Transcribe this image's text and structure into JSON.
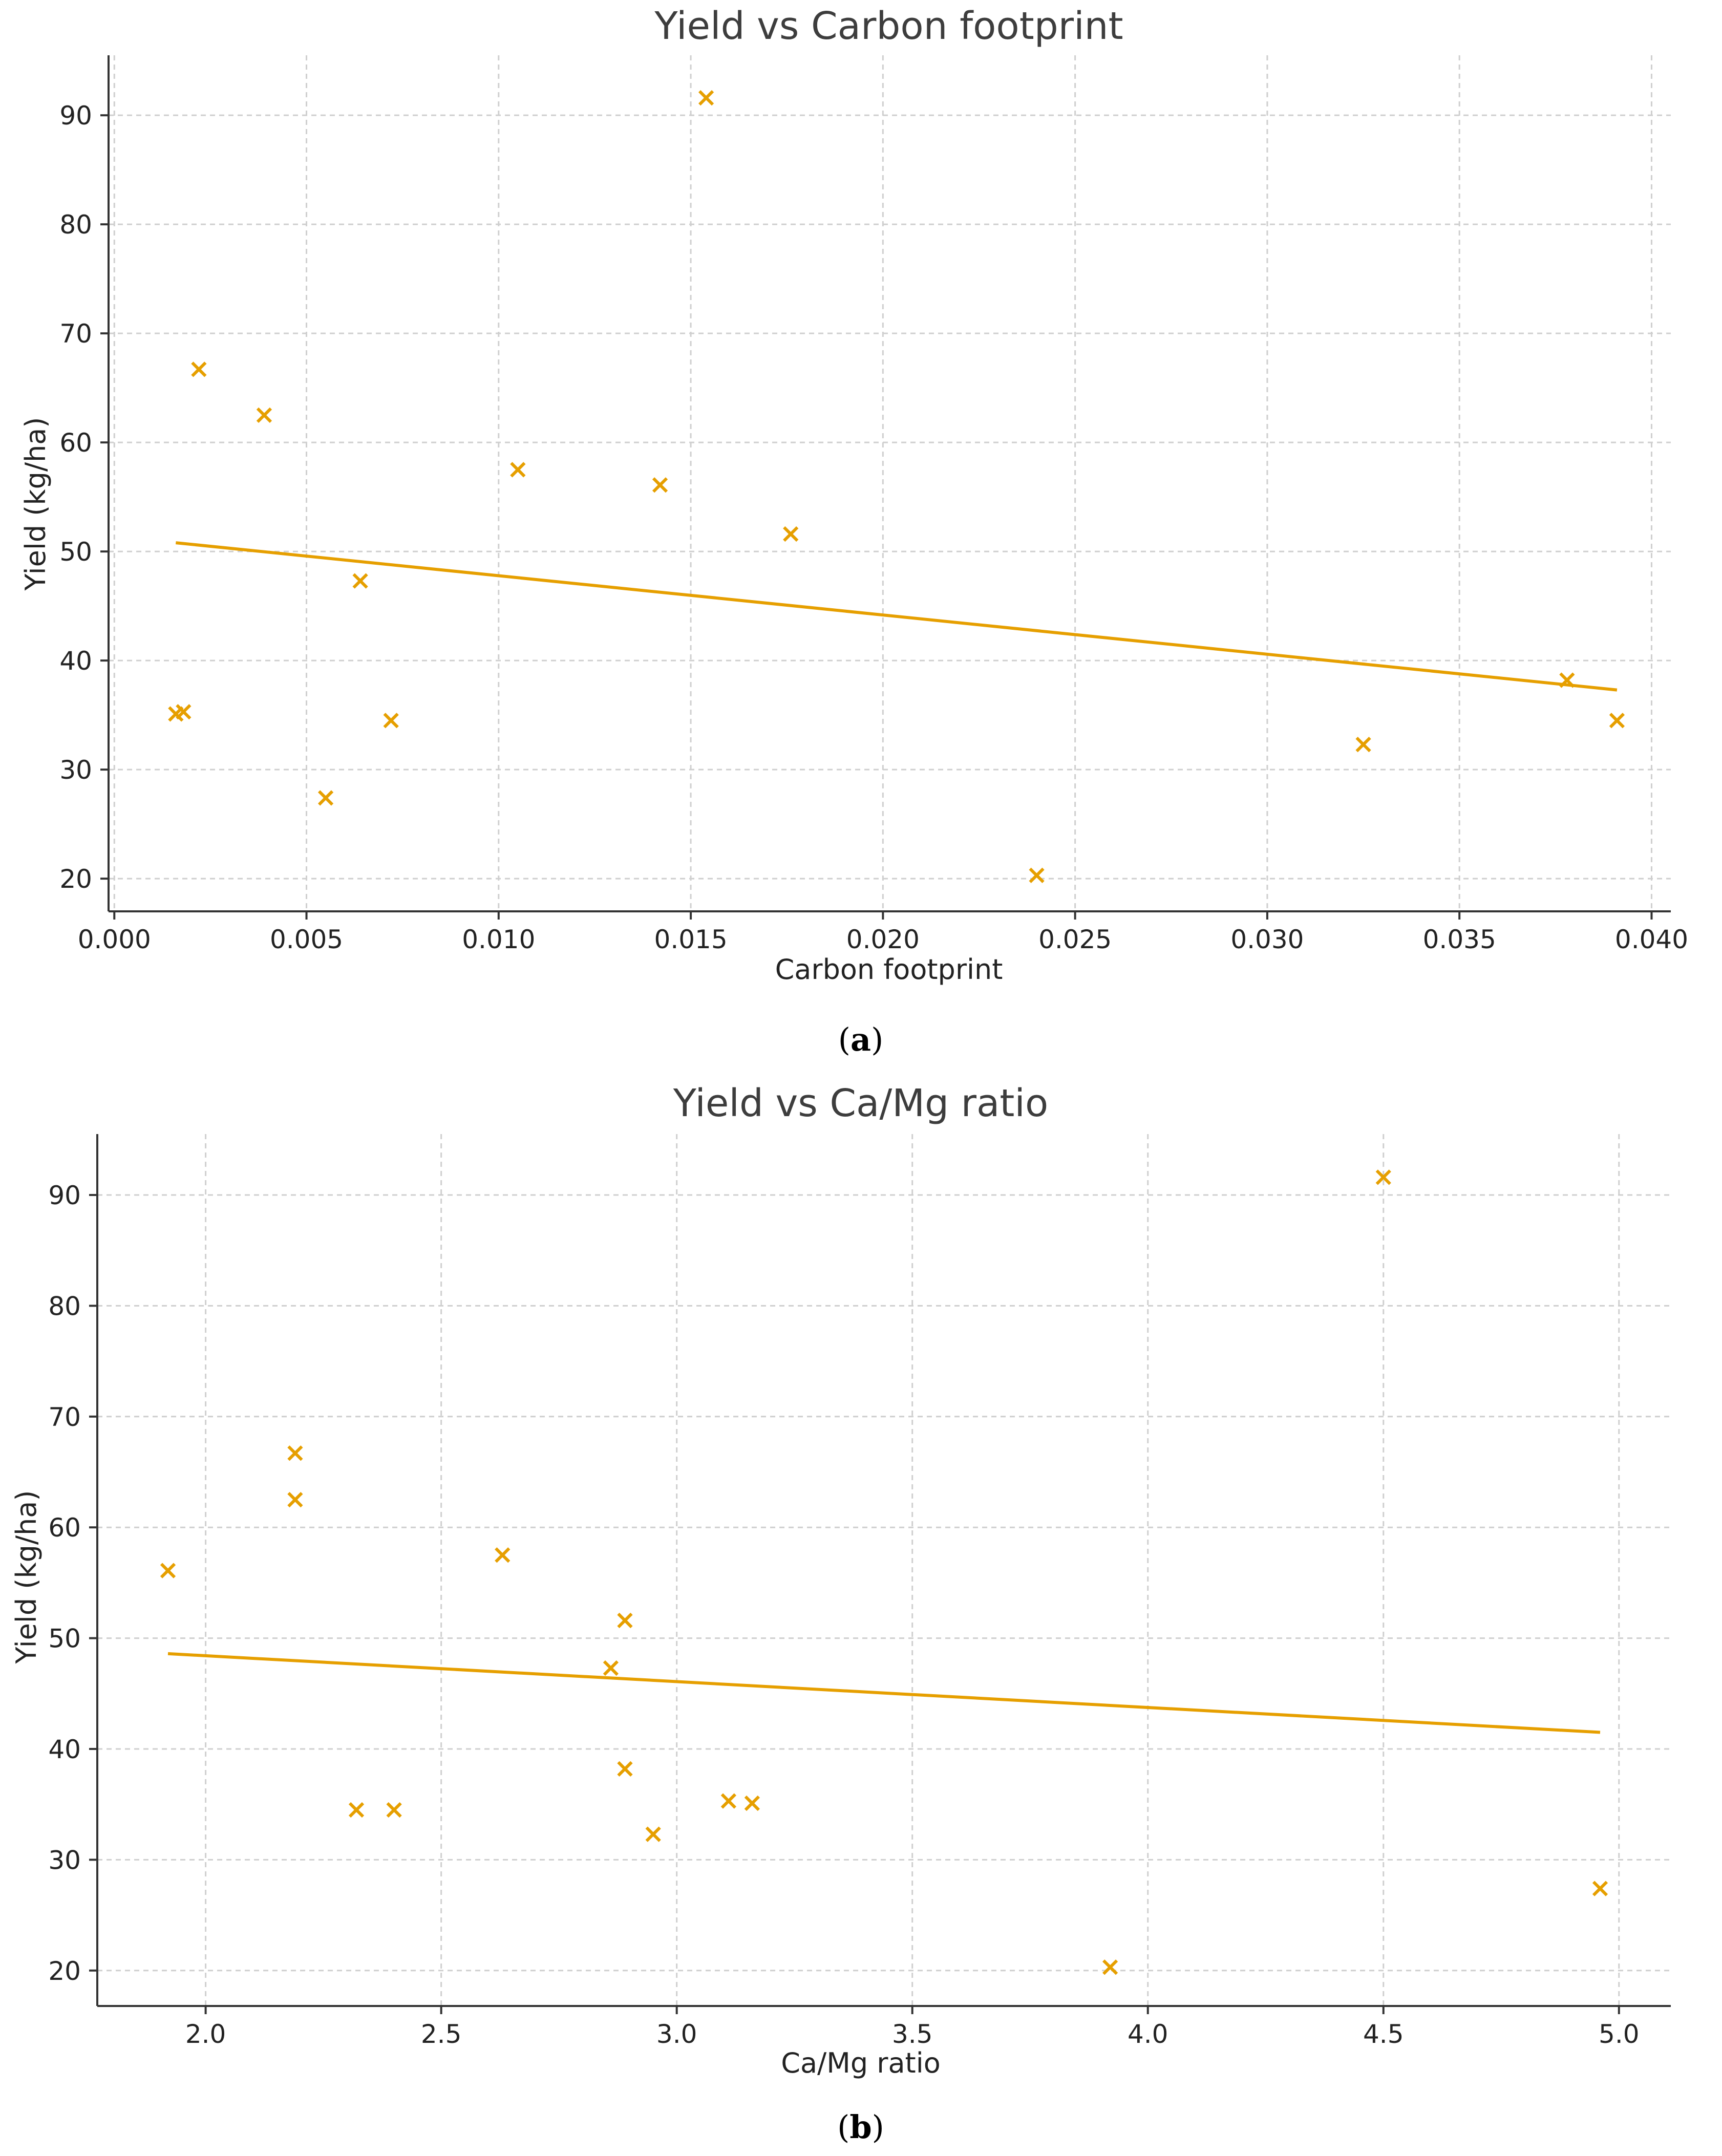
{
  "chart_data": [
    {
      "id": "a",
      "type": "scatter",
      "title": "Yield vs Carbon footprint",
      "xlabel": "Carbon footprint",
      "ylabel": "Yield (kg/ha)",
      "panel_label": "a",
      "xlim": [
        -0.00015,
        0.0405
      ],
      "ylim": [
        17,
        95.5
      ],
      "xticks": [
        0.0,
        0.005,
        0.01,
        0.015,
        0.02,
        0.025,
        0.03,
        0.035,
        0.04
      ],
      "xtick_labels": [
        "0.000",
        "0.005",
        "0.010",
        "0.015",
        "0.020",
        "0.025",
        "0.030",
        "0.035",
        "0.040"
      ],
      "yticks": [
        20,
        30,
        40,
        50,
        60,
        70,
        80,
        90
      ],
      "ytick_labels": [
        "20",
        "30",
        "40",
        "50",
        "60",
        "70",
        "80",
        "90"
      ],
      "grid": true,
      "marker": "x",
      "color": "#E69F00",
      "points": [
        {
          "x": 0.0016,
          "y": 35.1
        },
        {
          "x": 0.0018,
          "y": 35.3
        },
        {
          "x": 0.0022,
          "y": 66.7
        },
        {
          "x": 0.0039,
          "y": 62.5
        },
        {
          "x": 0.0055,
          "y": 27.4
        },
        {
          "x": 0.0064,
          "y": 47.3
        },
        {
          "x": 0.0072,
          "y": 34.5
        },
        {
          "x": 0.0105,
          "y": 57.5
        },
        {
          "x": 0.0142,
          "y": 56.1
        },
        {
          "x": 0.0154,
          "y": 91.6
        },
        {
          "x": 0.0176,
          "y": 51.6
        },
        {
          "x": 0.024,
          "y": 20.3
        },
        {
          "x": 0.0325,
          "y": 32.3
        },
        {
          "x": 0.0378,
          "y": 38.2
        },
        {
          "x": 0.0391,
          "y": 34.5
        }
      ],
      "trend_line": {
        "x": [
          0.0016,
          0.0391
        ],
        "y": [
          50.8,
          37.3
        ]
      }
    },
    {
      "id": "b",
      "type": "scatter",
      "title": "Yield vs Ca/Mg ratio",
      "xlabel": "Ca/Mg ratio",
      "ylabel": "Yield (kg/ha)",
      "panel_label": "b",
      "xlim": [
        1.77,
        5.11
      ],
      "ylim": [
        16.8,
        95.5
      ],
      "xticks": [
        2.0,
        2.5,
        3.0,
        3.5,
        4.0,
        4.5,
        5.0
      ],
      "xtick_labels": [
        "2.0",
        "2.5",
        "3.0",
        "3.5",
        "4.0",
        "4.5",
        "5.0"
      ],
      "yticks": [
        20,
        30,
        40,
        50,
        60,
        70,
        80,
        90
      ],
      "ytick_labels": [
        "20",
        "30",
        "40",
        "50",
        "60",
        "70",
        "80",
        "90"
      ],
      "grid": true,
      "marker": "x",
      "color": "#E69F00",
      "points": [
        {
          "x": 1.92,
          "y": 56.1
        },
        {
          "x": 2.19,
          "y": 66.7
        },
        {
          "x": 2.19,
          "y": 62.5
        },
        {
          "x": 2.32,
          "y": 34.5
        },
        {
          "x": 2.4,
          "y": 34.5
        },
        {
          "x": 2.63,
          "y": 57.5
        },
        {
          "x": 2.86,
          "y": 47.3
        },
        {
          "x": 2.89,
          "y": 51.6
        },
        {
          "x": 2.89,
          "y": 38.2
        },
        {
          "x": 2.95,
          "y": 32.3
        },
        {
          "x": 3.11,
          "y": 35.3
        },
        {
          "x": 3.16,
          "y": 35.1
        },
        {
          "x": 3.92,
          "y": 20.3
        },
        {
          "x": 4.5,
          "y": 91.6
        },
        {
          "x": 4.96,
          "y": 27.4
        }
      ],
      "trend_line": {
        "x": [
          1.92,
          4.96
        ],
        "y": [
          48.6,
          41.5
        ]
      }
    }
  ]
}
